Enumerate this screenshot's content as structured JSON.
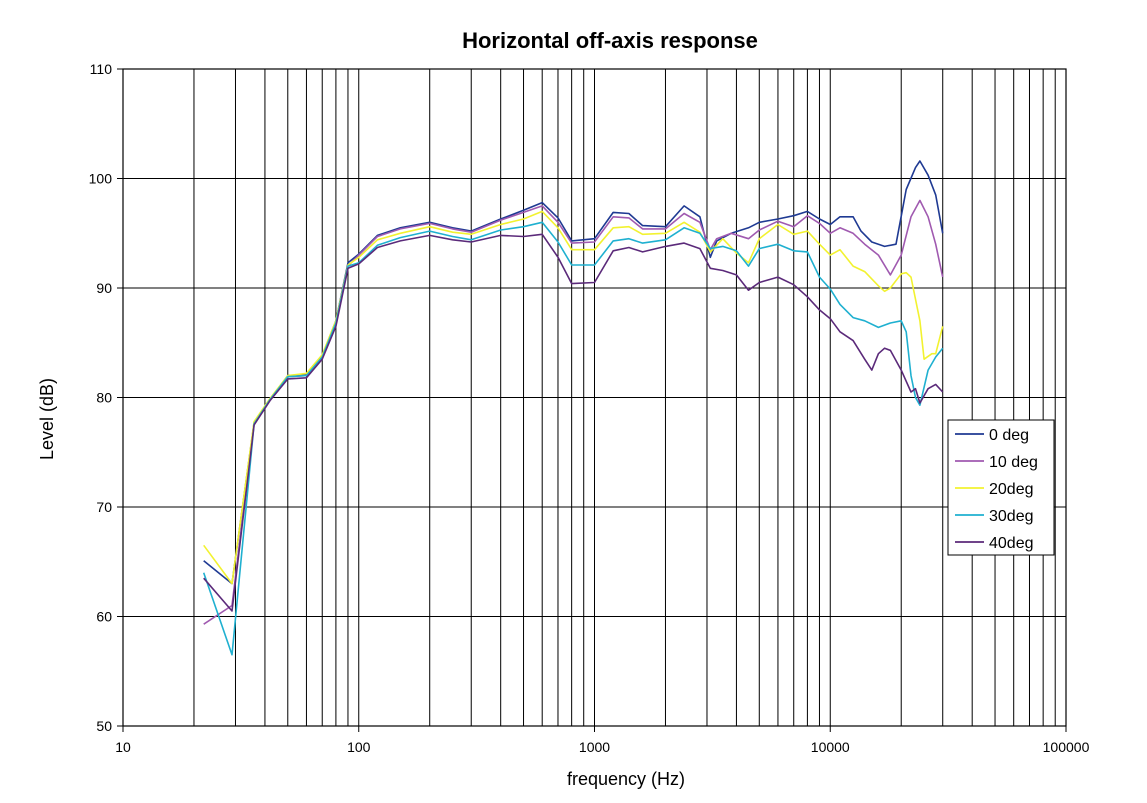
{
  "chart_data": {
    "type": "line",
    "title": "Horizontal off-axis response",
    "xlabel": "frequency (Hz)",
    "ylabel": "Level (dB)",
    "xscale": "log",
    "xlim": [
      10,
      100000
    ],
    "ylim": [
      50,
      110
    ],
    "x_tick_labels": [
      "10",
      "100",
      "1000",
      "10000",
      "100000"
    ],
    "y_tick_labels": [
      "50",
      "60",
      "70",
      "80",
      "90",
      "100",
      "110"
    ],
    "grid": true,
    "legend_position": "right",
    "series": [
      {
        "name": "0 deg",
        "color": "#1f3a93",
        "points": [
          [
            22,
            65.1
          ],
          [
            29,
            63
          ],
          [
            36,
            77.7
          ],
          [
            42,
            79.8
          ],
          [
            50,
            82
          ],
          [
            60,
            82.1
          ],
          [
            70,
            83.8
          ],
          [
            80,
            87
          ],
          [
            90,
            92.3
          ],
          [
            100,
            93.1
          ],
          [
            120,
            94.8
          ],
          [
            150,
            95.5
          ],
          [
            200,
            96
          ],
          [
            250,
            95.5
          ],
          [
            300,
            95.2
          ],
          [
            400,
            96.3
          ],
          [
            500,
            97.1
          ],
          [
            600,
            97.8
          ],
          [
            700,
            96.4
          ],
          [
            800,
            94.3
          ],
          [
            1000,
            94.5
          ],
          [
            1200,
            96.9
          ],
          [
            1400,
            96.8
          ],
          [
            1600,
            95.7
          ],
          [
            2000,
            95.6
          ],
          [
            2400,
            97.5
          ],
          [
            2800,
            96.5
          ],
          [
            3100,
            92.8
          ],
          [
            3300,
            94.3
          ],
          [
            3800,
            95
          ],
          [
            4500,
            95.5
          ],
          [
            5000,
            96
          ],
          [
            6000,
            96.3
          ],
          [
            7000,
            96.6
          ],
          [
            8000,
            97
          ],
          [
            9000,
            96.3
          ],
          [
            10000,
            95.8
          ],
          [
            11000,
            96.5
          ],
          [
            12500,
            96.5
          ],
          [
            13500,
            95.2
          ],
          [
            15000,
            94.2
          ],
          [
            17000,
            93.8
          ],
          [
            19000,
            94
          ],
          [
            21000,
            99
          ],
          [
            23000,
            101
          ],
          [
            24000,
            101.6
          ],
          [
            26000,
            100.3
          ],
          [
            28000,
            98.5
          ],
          [
            30000,
            95
          ]
        ]
      },
      {
        "name": "10 deg",
        "color": "#a05ab0",
        "points": [
          [
            22,
            59.3
          ],
          [
            29,
            61
          ],
          [
            36,
            77.7
          ],
          [
            42,
            79.8
          ],
          [
            50,
            81.9
          ],
          [
            60,
            82
          ],
          [
            70,
            83.7
          ],
          [
            80,
            86.8
          ],
          [
            90,
            92
          ],
          [
            100,
            93
          ],
          [
            120,
            94.7
          ],
          [
            150,
            95.4
          ],
          [
            200,
            95.9
          ],
          [
            250,
            95.4
          ],
          [
            300,
            95.1
          ],
          [
            400,
            96.2
          ],
          [
            500,
            96.9
          ],
          [
            600,
            97.5
          ],
          [
            700,
            96
          ],
          [
            800,
            94.1
          ],
          [
            1000,
            94.2
          ],
          [
            1200,
            96.5
          ],
          [
            1400,
            96.4
          ],
          [
            1600,
            95.4
          ],
          [
            2000,
            95.4
          ],
          [
            2400,
            96.8
          ],
          [
            2800,
            96
          ],
          [
            3100,
            93.5
          ],
          [
            3300,
            94.5
          ],
          [
            3800,
            95
          ],
          [
            4500,
            94.5
          ],
          [
            5000,
            95.3
          ],
          [
            6000,
            96.1
          ],
          [
            7000,
            95.6
          ],
          [
            8000,
            96.6
          ],
          [
            9000,
            95.9
          ],
          [
            10000,
            95
          ],
          [
            11000,
            95.5
          ],
          [
            12500,
            95
          ],
          [
            14000,
            94
          ],
          [
            16000,
            93
          ],
          [
            18000,
            91.2
          ],
          [
            20000,
            93
          ],
          [
            22000,
            96.5
          ],
          [
            24000,
            98
          ],
          [
            26000,
            96.5
          ],
          [
            28000,
            94
          ],
          [
            30000,
            91
          ]
        ]
      },
      {
        "name": "20deg",
        "color": "#f2f230",
        "points": [
          [
            22,
            66.5
          ],
          [
            29,
            63
          ],
          [
            36,
            77.8
          ],
          [
            42,
            79.9
          ],
          [
            50,
            82
          ],
          [
            60,
            82.2
          ],
          [
            70,
            83.9
          ],
          [
            80,
            87
          ],
          [
            90,
            92.1
          ],
          [
            100,
            92.8
          ],
          [
            120,
            94.4
          ],
          [
            150,
            95
          ],
          [
            200,
            95.6
          ],
          [
            250,
            95.1
          ],
          [
            300,
            94.9
          ],
          [
            400,
            95.8
          ],
          [
            500,
            96.3
          ],
          [
            600,
            97
          ],
          [
            700,
            95.5
          ],
          [
            800,
            93.5
          ],
          [
            1000,
            93.5
          ],
          [
            1200,
            95.5
          ],
          [
            1400,
            95.6
          ],
          [
            1600,
            94.9
          ],
          [
            2000,
            95
          ],
          [
            2400,
            96
          ],
          [
            2800,
            95.1
          ],
          [
            3100,
            93.3
          ],
          [
            3500,
            94.5
          ],
          [
            4000,
            93.2
          ],
          [
            4500,
            92.3
          ],
          [
            5000,
            94.5
          ],
          [
            6000,
            95.8
          ],
          [
            7000,
            94.9
          ],
          [
            8000,
            95.2
          ],
          [
            9000,
            94
          ],
          [
            10000,
            93
          ],
          [
            11000,
            93.5
          ],
          [
            12500,
            92
          ],
          [
            14000,
            91.5
          ],
          [
            16000,
            90.2
          ],
          [
            17000,
            89.7
          ],
          [
            18000,
            90
          ],
          [
            20000,
            91.3
          ],
          [
            21000,
            91.4
          ],
          [
            22000,
            91
          ],
          [
            24000,
            87
          ],
          [
            25000,
            83.5
          ],
          [
            27000,
            84
          ],
          [
            28000,
            84
          ],
          [
            30000,
            86.5
          ]
        ]
      },
      {
        "name": "30deg",
        "color": "#1fb0d0",
        "points": [
          [
            22,
            64
          ],
          [
            29,
            56.5
          ],
          [
            36,
            77.6
          ],
          [
            42,
            79.8
          ],
          [
            50,
            81.9
          ],
          [
            60,
            82
          ],
          [
            70,
            83.7
          ],
          [
            80,
            86.8
          ],
          [
            90,
            92
          ],
          [
            100,
            92.3
          ],
          [
            120,
            93.9
          ],
          [
            150,
            94.6
          ],
          [
            200,
            95.2
          ],
          [
            250,
            94.7
          ],
          [
            300,
            94.4
          ],
          [
            400,
            95.3
          ],
          [
            500,
            95.6
          ],
          [
            600,
            96
          ],
          [
            700,
            94.2
          ],
          [
            800,
            92.1
          ],
          [
            1000,
            92.1
          ],
          [
            1200,
            94.3
          ],
          [
            1400,
            94.5
          ],
          [
            1600,
            94.1
          ],
          [
            2000,
            94.4
          ],
          [
            2400,
            95.5
          ],
          [
            2800,
            95
          ],
          [
            3100,
            93.6
          ],
          [
            3500,
            93.8
          ],
          [
            4000,
            93.4
          ],
          [
            4500,
            92
          ],
          [
            5000,
            93.6
          ],
          [
            6000,
            94
          ],
          [
            7000,
            93.4
          ],
          [
            8000,
            93.3
          ],
          [
            9000,
            91
          ],
          [
            10000,
            89.9
          ],
          [
            11000,
            88.5
          ],
          [
            12500,
            87.3
          ],
          [
            14000,
            87
          ],
          [
            16000,
            86.4
          ],
          [
            18000,
            86.8
          ],
          [
            20000,
            87
          ],
          [
            21000,
            86
          ],
          [
            22000,
            82
          ],
          [
            23000,
            80
          ],
          [
            24000,
            79.3
          ],
          [
            26000,
            82.5
          ],
          [
            28000,
            83.7
          ],
          [
            30000,
            84.5
          ]
        ]
      },
      {
        "name": "40deg",
        "color": "#5b2a7a",
        "points": [
          [
            22,
            63.5
          ],
          [
            29,
            60.5
          ],
          [
            36,
            77.5
          ],
          [
            42,
            79.7
          ],
          [
            50,
            81.7
          ],
          [
            60,
            81.8
          ],
          [
            70,
            83.5
          ],
          [
            80,
            86.5
          ],
          [
            90,
            91.8
          ],
          [
            100,
            92.2
          ],
          [
            120,
            93.7
          ],
          [
            150,
            94.3
          ],
          [
            200,
            94.8
          ],
          [
            250,
            94.4
          ],
          [
            300,
            94.2
          ],
          [
            400,
            94.8
          ],
          [
            500,
            94.7
          ],
          [
            600,
            94.9
          ],
          [
            700,
            92.8
          ],
          [
            800,
            90.4
          ],
          [
            1000,
            90.5
          ],
          [
            1200,
            93.4
          ],
          [
            1400,
            93.7
          ],
          [
            1600,
            93.3
          ],
          [
            2000,
            93.8
          ],
          [
            2400,
            94.1
          ],
          [
            2800,
            93.6
          ],
          [
            3100,
            91.8
          ],
          [
            3500,
            91.6
          ],
          [
            4000,
            91.2
          ],
          [
            4500,
            89.8
          ],
          [
            5000,
            90.5
          ],
          [
            6000,
            91
          ],
          [
            7000,
            90.3
          ],
          [
            8000,
            89.2
          ],
          [
            9000,
            88
          ],
          [
            10000,
            87.2
          ],
          [
            11000,
            86
          ],
          [
            12500,
            85.2
          ],
          [
            14000,
            83.5
          ],
          [
            15000,
            82.5
          ],
          [
            16000,
            84
          ],
          [
            17000,
            84.5
          ],
          [
            18000,
            84.3
          ],
          [
            20000,
            82.5
          ],
          [
            22000,
            80.5
          ],
          [
            23000,
            80.8
          ],
          [
            24000,
            79.5
          ],
          [
            26000,
            80.8
          ],
          [
            28000,
            81.2
          ],
          [
            30000,
            80.5
          ]
        ]
      }
    ]
  }
}
